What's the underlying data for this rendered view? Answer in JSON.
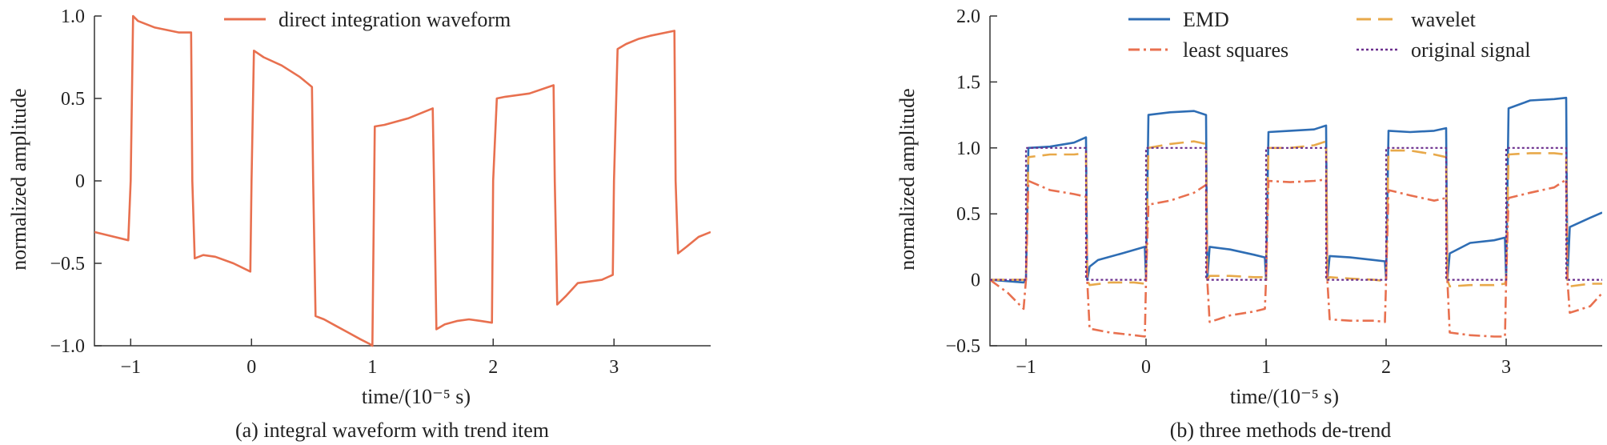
{
  "figure": {
    "panels": [
      {
        "caption": "(a) integral waveform with trend item",
        "xlabel": "time/(10⁻⁵ s)",
        "ylabel": "normalized amplitude"
      },
      {
        "caption": "(b) three methods de-trend",
        "xlabel": "time/(10⁻⁵ s)",
        "ylabel": "normalized amplitude"
      }
    ]
  },
  "chart_data": [
    {
      "type": "line",
      "caption": "(a) integral waveform with trend item",
      "xlabel": "time/(10⁻⁵ s)",
      "ylabel": "normalized amplitude",
      "xlim": [
        -1.3,
        3.8
      ],
      "ylim": [
        -1.0,
        1.0
      ],
      "x_ticks": [
        -1,
        0,
        1,
        2,
        3
      ],
      "x_tick_labels": [
        "−1",
        "0",
        "1",
        "2",
        "3"
      ],
      "y_ticks": [
        -1.0,
        -0.5,
        0,
        0.5,
        1.0
      ],
      "y_tick_labels": [
        "−1.0",
        "−0.5",
        "0",
        "0.5",
        "1.0"
      ],
      "grid": false,
      "legend_position": "top-center",
      "series": [
        {
          "name": "direct integration waveform",
          "color": "#E8704F",
          "style": "solid",
          "x": [
            -1.3,
            -1.02,
            -1.0,
            -0.98,
            -0.94,
            -0.8,
            -0.6,
            -0.5,
            -0.49,
            -0.47,
            -0.4,
            -0.3,
            -0.15,
            -0.01,
            0.0,
            0.02,
            0.1,
            0.25,
            0.4,
            0.5,
            0.51,
            0.53,
            0.6,
            0.7,
            0.8,
            0.9,
            0.98,
            1.0,
            1.02,
            1.1,
            1.3,
            1.5,
            1.51,
            1.53,
            1.6,
            1.7,
            1.8,
            1.9,
            1.99,
            2.0,
            2.03,
            2.1,
            2.3,
            2.5,
            2.51,
            2.53,
            2.6,
            2.7,
            2.9,
            2.99,
            3.0,
            3.03,
            3.1,
            3.2,
            3.3,
            3.5,
            3.51,
            3.53,
            3.6,
            3.7,
            3.8
          ],
          "values": [
            -0.31,
            -0.36,
            0.0,
            1.0,
            0.97,
            0.93,
            0.9,
            0.9,
            0.0,
            -0.47,
            -0.45,
            -0.46,
            -0.5,
            -0.55,
            0.0,
            0.79,
            0.75,
            0.7,
            0.63,
            0.57,
            0.0,
            -0.82,
            -0.84,
            -0.88,
            -0.92,
            -0.96,
            -0.99,
            -1.0,
            0.33,
            0.34,
            0.38,
            0.44,
            0.0,
            -0.9,
            -0.87,
            -0.85,
            -0.84,
            -0.85,
            -0.86,
            0.0,
            0.5,
            0.51,
            0.53,
            0.58,
            0.0,
            -0.75,
            -0.7,
            -0.62,
            -0.6,
            -0.57,
            0.0,
            0.8,
            0.83,
            0.86,
            0.88,
            0.91,
            0.0,
            -0.44,
            -0.4,
            -0.34,
            -0.31
          ]
        }
      ]
    },
    {
      "type": "line",
      "caption": "(b) three methods de-trend",
      "xlabel": "time/(10⁻⁵ s)",
      "ylabel": "normalized amplitude",
      "xlim": [
        -1.3,
        3.8
      ],
      "ylim": [
        -0.5,
        2.0
      ],
      "x_ticks": [
        -1,
        0,
        1,
        2,
        3
      ],
      "x_tick_labels": [
        "−1",
        "0",
        "1",
        "2",
        "3"
      ],
      "y_ticks": [
        -0.5,
        0,
        0.5,
        1.0,
        1.5,
        2.0
      ],
      "y_tick_labels": [
        "−0.5",
        "0",
        "0.5",
        "1.0",
        "1.5",
        "2.0"
      ],
      "grid": false,
      "legend_position": "top-right",
      "series": [
        {
          "name": "EMD",
          "color": "#2E6DB4",
          "style": "solid",
          "x": [
            -1.3,
            -1.02,
            -1.0,
            -0.98,
            -0.8,
            -0.6,
            -0.5,
            -0.49,
            -0.47,
            -0.4,
            -0.2,
            -0.01,
            0.0,
            0.02,
            0.2,
            0.4,
            0.5,
            0.51,
            0.53,
            0.7,
            0.9,
            0.99,
            1.0,
            1.02,
            1.2,
            1.4,
            1.5,
            1.51,
            1.53,
            1.7,
            1.9,
            1.99,
            2.0,
            2.02,
            2.2,
            2.4,
            2.5,
            2.51,
            2.53,
            2.7,
            2.9,
            2.99,
            3.0,
            3.02,
            3.2,
            3.4,
            3.5,
            3.51,
            3.53,
            3.7,
            3.8
          ],
          "values": [
            0.0,
            -0.02,
            0.0,
            1.0,
            1.01,
            1.04,
            1.08,
            0.0,
            0.1,
            0.15,
            0.2,
            0.25,
            0.0,
            1.25,
            1.27,
            1.28,
            1.25,
            0.0,
            0.25,
            0.23,
            0.19,
            0.17,
            0.0,
            1.12,
            1.13,
            1.14,
            1.17,
            0.0,
            0.18,
            0.17,
            0.15,
            0.14,
            0.0,
            1.13,
            1.12,
            1.13,
            1.15,
            0.0,
            0.2,
            0.28,
            0.3,
            0.32,
            0.0,
            1.3,
            1.36,
            1.37,
            1.38,
            0.0,
            0.4,
            0.47,
            0.51
          ]
        },
        {
          "name": "wavelet",
          "color": "#E8A94A",
          "style": "dashed",
          "x": [
            -1.3,
            -1.02,
            -1.0,
            -0.98,
            -0.8,
            -0.6,
            -0.5,
            -0.49,
            -0.47,
            -0.3,
            -0.1,
            -0.01,
            0.0,
            0.02,
            0.2,
            0.4,
            0.5,
            0.51,
            0.53,
            0.7,
            0.9,
            0.99,
            1.0,
            1.02,
            1.2,
            1.4,
            1.5,
            1.51,
            1.53,
            1.7,
            1.9,
            1.99,
            2.0,
            2.02,
            2.2,
            2.4,
            2.5,
            2.51,
            2.53,
            2.7,
            2.9,
            2.99,
            3.0,
            3.02,
            3.2,
            3.4,
            3.5,
            3.51,
            3.53,
            3.7,
            3.8
          ],
          "values": [
            0.0,
            0.0,
            0.0,
            0.93,
            0.95,
            0.95,
            0.96,
            0.0,
            -0.04,
            -0.02,
            -0.02,
            -0.03,
            0.0,
            1.0,
            1.03,
            1.05,
            1.03,
            0.0,
            0.03,
            0.03,
            0.02,
            0.02,
            0.0,
            1.0,
            1.0,
            1.02,
            1.05,
            0.0,
            0.02,
            0.01,
            0.0,
            -0.01,
            0.0,
            0.98,
            0.98,
            0.95,
            0.93,
            0.0,
            -0.05,
            -0.04,
            -0.04,
            -0.03,
            0.0,
            0.95,
            0.96,
            0.96,
            0.95,
            0.0,
            -0.05,
            -0.03,
            -0.03
          ]
        },
        {
          "name": "least squares",
          "color": "#E8704F",
          "style": "dashdot",
          "x": [
            -1.3,
            -1.15,
            -1.02,
            -1.0,
            -0.98,
            -0.8,
            -0.6,
            -0.5,
            -0.49,
            -0.47,
            -0.3,
            -0.1,
            -0.01,
            0.0,
            0.02,
            0.2,
            0.4,
            0.5,
            0.51,
            0.53,
            0.7,
            0.9,
            0.99,
            1.0,
            1.02,
            1.2,
            1.4,
            1.5,
            1.51,
            1.53,
            1.7,
            1.9,
            1.99,
            2.0,
            2.02,
            2.2,
            2.4,
            2.5,
            2.51,
            2.53,
            2.7,
            2.9,
            2.99,
            3.0,
            3.02,
            3.2,
            3.4,
            3.5,
            3.51,
            3.53,
            3.7,
            3.8
          ],
          "values": [
            0.0,
            -0.1,
            -0.22,
            0.0,
            0.75,
            0.68,
            0.65,
            0.63,
            0.0,
            -0.37,
            -0.4,
            -0.42,
            -0.43,
            0.0,
            0.57,
            0.6,
            0.66,
            0.72,
            0.0,
            -0.32,
            -0.27,
            -0.24,
            -0.22,
            0.0,
            0.75,
            0.74,
            0.75,
            0.76,
            0.0,
            -0.3,
            -0.31,
            -0.31,
            -0.32,
            0.0,
            0.68,
            0.64,
            0.6,
            0.62,
            0.0,
            -0.4,
            -0.42,
            -0.43,
            -0.43,
            0.0,
            0.62,
            0.66,
            0.7,
            0.76,
            0.0,
            -0.25,
            -0.2,
            -0.1
          ]
        },
        {
          "name": "original signal",
          "color": "#6B2F8E",
          "style": "dotted",
          "x": [
            -1.3,
            -1.0,
            -1.0,
            -0.5,
            -0.5,
            0.0,
            0.0,
            0.5,
            0.5,
            1.0,
            1.0,
            1.5,
            1.5,
            2.0,
            2.0,
            2.5,
            2.5,
            3.0,
            3.0,
            3.5,
            3.5,
            3.8
          ],
          "values": [
            0.0,
            0.0,
            1.0,
            1.0,
            0.0,
            0.0,
            1.0,
            1.0,
            0.0,
            0.0,
            1.0,
            1.0,
            0.0,
            0.0,
            1.0,
            1.0,
            0.0,
            0.0,
            1.0,
            1.0,
            0.0,
            0.0
          ]
        }
      ]
    }
  ]
}
